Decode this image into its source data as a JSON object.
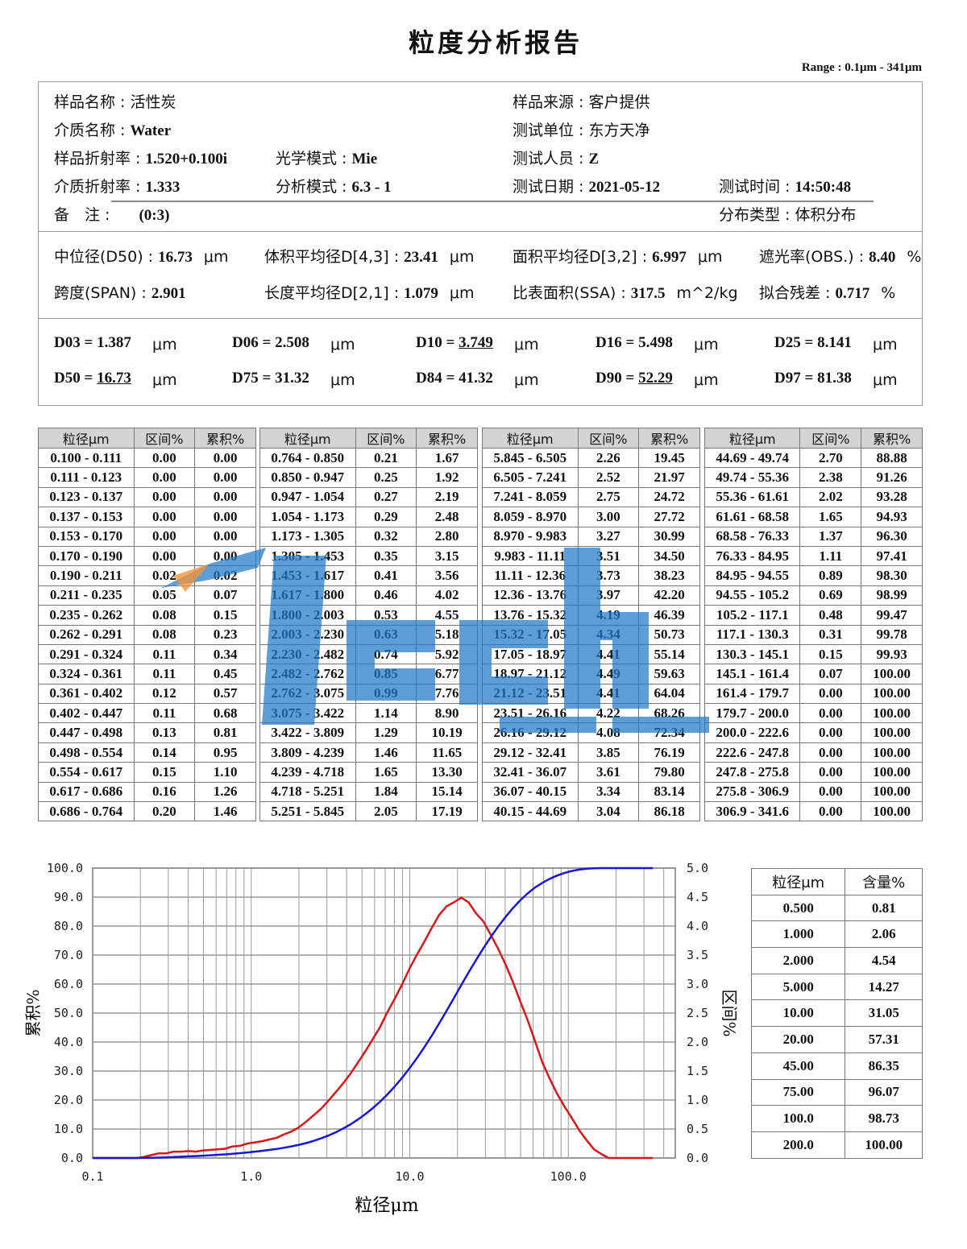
{
  "title": "粒度分析报告",
  "range": "Range : 0.1μm - 341μm",
  "info": {
    "sample_name": "样品名称 : 活性炭",
    "sample_source": "样品来源 : 客户提供",
    "medium_label": "介质名称 : ",
    "medium": "Water",
    "test_unit": "测试单位 : 东方天净",
    "sample_ri_label": "样品折射率 : ",
    "sample_ri": "1.520+0.100i",
    "optical_label": "光学模式 : ",
    "optical": "Mie",
    "tester_label": "测试人员 : ",
    "tester": "Z",
    "medium_ri_label": "介质折射率 : ",
    "medium_ri": "1.333",
    "analysis_label": "分析模式 : ",
    "analysis": "6.3 - 1",
    "date_label": "测试日期 : ",
    "date": "2021-05-12",
    "time_label": "测试时间 : ",
    "time": "14:50:48",
    "remark_label": "备　注 :",
    "remark": "(0:3)",
    "dist_type": "分布类型 : 体积分布"
  },
  "params": [
    {
      "label": "中位径(D50) : ",
      "value": "16.73",
      "unit": "μm"
    },
    {
      "label": "体积平均径D[4,3] : ",
      "value": "23.41",
      "unit": "μm"
    },
    {
      "label": "面积平均径D[3,2] : ",
      "value": "6.997",
      "unit": "μm"
    },
    {
      "label": "遮光率(OBS.) : ",
      "value": "8.40",
      "unit": "%"
    },
    {
      "label": "跨度(SPAN) : ",
      "value": "2.901",
      "unit": ""
    },
    {
      "label": "长度平均径D[2,1] : ",
      "value": "1.079",
      "unit": "μm"
    },
    {
      "label": "比表面积(SSA) : ",
      "value": "317.5",
      "unit": "m^2/kg"
    },
    {
      "label": "拟合残差 : ",
      "value": "0.717",
      "unit": "%"
    }
  ],
  "dvalues": [
    {
      "label": "D03 = ",
      "value": "1.387",
      "unit": "μm",
      "underline": false
    },
    {
      "label": "D06 = ",
      "value": "2.508",
      "unit": "μm",
      "underline": false
    },
    {
      "label": "D10 = ",
      "value": "3.749",
      "unit": "μm",
      "underline": true
    },
    {
      "label": "D16 = ",
      "value": "5.498",
      "unit": "μm",
      "underline": false
    },
    {
      "label": "D25 = ",
      "value": "8.141",
      "unit": "μm",
      "underline": false
    },
    {
      "label": "D50 = ",
      "value": "16.73",
      "unit": "μm",
      "underline": true
    },
    {
      "label": "D75 = ",
      "value": "31.32",
      "unit": "μm",
      "underline": false
    },
    {
      "label": "D84 = ",
      "value": "41.32",
      "unit": "μm",
      "underline": false
    },
    {
      "label": "D90 = ",
      "value": "52.29",
      "unit": "μm",
      "underline": true
    },
    {
      "label": "D97 = ",
      "value": "81.38",
      "unit": "μm",
      "underline": false
    }
  ],
  "size_table": {
    "headers": [
      "粒径μm",
      "区间%",
      "累积%"
    ],
    "blocks": [
      [
        [
          "0.100 - 0.111",
          "0.00",
          "0.00"
        ],
        [
          "0.111 - 0.123",
          "0.00",
          "0.00"
        ],
        [
          "0.123 - 0.137",
          "0.00",
          "0.00"
        ],
        [
          "0.137 - 0.153",
          "0.00",
          "0.00"
        ],
        [
          "0.153 - 0.170",
          "0.00",
          "0.00"
        ],
        [
          "0.170 - 0.190",
          "0.00",
          "0.00"
        ],
        [
          "0.190 - 0.211",
          "0.02",
          "0.02"
        ],
        [
          "0.211 - 0.235",
          "0.05",
          "0.07"
        ],
        [
          "0.235 - 0.262",
          "0.08",
          "0.15"
        ],
        [
          "0.262 - 0.291",
          "0.08",
          "0.23"
        ],
        [
          "0.291 - 0.324",
          "0.11",
          "0.34"
        ],
        [
          "0.324 - 0.361",
          "0.11",
          "0.45"
        ],
        [
          "0.361 - 0.402",
          "0.12",
          "0.57"
        ],
        [
          "0.402 - 0.447",
          "0.11",
          "0.68"
        ],
        [
          "0.447 - 0.498",
          "0.13",
          "0.81"
        ],
        [
          "0.498 - 0.554",
          "0.14",
          "0.95"
        ],
        [
          "0.554 - 0.617",
          "0.15",
          "1.10"
        ],
        [
          "0.617 - 0.686",
          "0.16",
          "1.26"
        ],
        [
          "0.686 - 0.764",
          "0.20",
          "1.46"
        ]
      ],
      [
        [
          "0.764 - 0.850",
          "0.21",
          "1.67"
        ],
        [
          "0.850 - 0.947",
          "0.25",
          "1.92"
        ],
        [
          "0.947 - 1.054",
          "0.27",
          "2.19"
        ],
        [
          "1.054 - 1.173",
          "0.29",
          "2.48"
        ],
        [
          "1.173 - 1.305",
          "0.32",
          "2.80"
        ],
        [
          "1.305 - 1.453",
          "0.35",
          "3.15"
        ],
        [
          "1.453 - 1.617",
          "0.41",
          "3.56"
        ],
        [
          "1.617 - 1.800",
          "0.46",
          "4.02"
        ],
        [
          "1.800 - 2.003",
          "0.53",
          "4.55"
        ],
        [
          "2.003 - 2.230",
          "0.63",
          "5.18"
        ],
        [
          "2.230 - 2.482",
          "0.74",
          "5.92"
        ],
        [
          "2.482 - 2.762",
          "0.85",
          "6.77"
        ],
        [
          "2.762 - 3.075",
          "0.99",
          "7.76"
        ],
        [
          "3.075 - 3.422",
          "1.14",
          "8.90"
        ],
        [
          "3.422 - 3.809",
          "1.29",
          "10.19"
        ],
        [
          "3.809 - 4.239",
          "1.46",
          "11.65"
        ],
        [
          "4.239 - 4.718",
          "1.65",
          "13.30"
        ],
        [
          "4.718 - 5.251",
          "1.84",
          "15.14"
        ],
        [
          "5.251 - 5.845",
          "2.05",
          "17.19"
        ]
      ],
      [
        [
          "5.845 - 6.505",
          "2.26",
          "19.45"
        ],
        [
          "6.505 - 7.241",
          "2.52",
          "21.97"
        ],
        [
          "7.241 - 8.059",
          "2.75",
          "24.72"
        ],
        [
          "8.059 - 8.970",
          "3.00",
          "27.72"
        ],
        [
          "8.970 - 9.983",
          "3.27",
          "30.99"
        ],
        [
          "9.983 - 11.11",
          "3.51",
          "34.50"
        ],
        [
          "11.11 - 12.36",
          "3.73",
          "38.23"
        ],
        [
          "12.36 - 13.76",
          "3.97",
          "42.20"
        ],
        [
          "13.76 - 15.32",
          "4.19",
          "46.39"
        ],
        [
          "15.32 - 17.05",
          "4.34",
          "50.73"
        ],
        [
          "17.05 - 18.97",
          "4.41",
          "55.14"
        ],
        [
          "18.97 - 21.12",
          "4.49",
          "59.63"
        ],
        [
          "21.12 - 23.51",
          "4.41",
          "64.04"
        ],
        [
          "23.51 - 26.16",
          "4.22",
          "68.26"
        ],
        [
          "26.16 - 29.12",
          "4.08",
          "72.34"
        ],
        [
          "29.12 - 32.41",
          "3.85",
          "76.19"
        ],
        [
          "32.41 - 36.07",
          "3.61",
          "79.80"
        ],
        [
          "36.07 - 40.15",
          "3.34",
          "83.14"
        ],
        [
          "40.15 - 44.69",
          "3.04",
          "86.18"
        ]
      ],
      [
        [
          "44.69 - 49.74",
          "2.70",
          "88.88"
        ],
        [
          "49.74 - 55.36",
          "2.38",
          "91.26"
        ],
        [
          "55.36 - 61.61",
          "2.02",
          "93.28"
        ],
        [
          "61.61 - 68.58",
          "1.65",
          "94.93"
        ],
        [
          "68.58 - 76.33",
          "1.37",
          "96.30"
        ],
        [
          "76.33 - 84.95",
          "1.11",
          "97.41"
        ],
        [
          "84.95 - 94.55",
          "0.89",
          "98.30"
        ],
        [
          "94.55 - 105.2",
          "0.69",
          "98.99"
        ],
        [
          "105.2 - 117.1",
          "0.48",
          "99.47"
        ],
        [
          "117.1 - 130.3",
          "0.31",
          "99.78"
        ],
        [
          "130.3 - 145.1",
          "0.15",
          "99.93"
        ],
        [
          "145.1 - 161.4",
          "0.07",
          "100.00"
        ],
        [
          "161.4 - 179.7",
          "0.00",
          "100.00"
        ],
        [
          "179.7 - 200.0",
          "0.00",
          "100.00"
        ],
        [
          "200.0 - 222.6",
          "0.00",
          "100.00"
        ],
        [
          "222.6 - 247.8",
          "0.00",
          "100.00"
        ],
        [
          "247.8 - 275.8",
          "0.00",
          "100.00"
        ],
        [
          "275.8 - 306.9",
          "0.00",
          "100.00"
        ],
        [
          "306.9 - 341.6",
          "0.00",
          "100.00"
        ]
      ]
    ]
  },
  "watermark": {
    "logo": "Tech",
    "text": "东方天净",
    "color": "#1e78c8"
  },
  "chart_data": {
    "type": "line",
    "xlabel": "粒径μm",
    "ylabel_left": "累积%",
    "ylabel_right": "区间%",
    "xscale": "log",
    "xlim": [
      0.1,
      473
    ],
    "ylim_left": [
      0,
      100
    ],
    "ylim_right": [
      0,
      5
    ],
    "grid": true,
    "xticks": [
      "0.1",
      "1.0",
      "10.0",
      "100.0"
    ],
    "yticks_left": [
      "0.0",
      "10.0",
      "20.0",
      "30.0",
      "40.0",
      "50.0",
      "60.0",
      "70.0",
      "80.0",
      "90.0",
      "100.0"
    ],
    "yticks_right": [
      "0.0",
      "0.5",
      "1.0",
      "1.5",
      "2.0",
      "2.5",
      "3.0",
      "3.5",
      "4.0",
      "4.5",
      "5.0"
    ],
    "x": [
      0.1,
      0.111,
      0.123,
      0.137,
      0.153,
      0.17,
      0.19,
      0.211,
      0.235,
      0.262,
      0.291,
      0.324,
      0.361,
      0.402,
      0.447,
      0.498,
      0.554,
      0.617,
      0.686,
      0.764,
      0.85,
      0.947,
      1.054,
      1.173,
      1.305,
      1.453,
      1.617,
      1.8,
      2.003,
      2.23,
      2.482,
      2.762,
      3.075,
      3.422,
      3.809,
      4.239,
      4.718,
      5.251,
      5.845,
      6.505,
      7.241,
      8.059,
      8.97,
      9.983,
      11.11,
      12.36,
      13.76,
      15.32,
      17.05,
      18.97,
      21.12,
      23.51,
      26.16,
      29.12,
      32.41,
      36.07,
      40.15,
      44.69,
      49.74,
      55.36,
      61.61,
      68.58,
      76.33,
      84.95,
      94.55,
      105.2,
      117.1,
      130.3,
      145.1,
      161.4,
      179.7,
      200.0,
      222.6,
      247.8,
      275.8,
      306.9,
      341.6
    ],
    "series": [
      {
        "name": "区间%",
        "axis": "right",
        "color": "#d81818",
        "values": [
          0,
          0,
          0,
          0,
          0,
          0,
          0,
          0.02,
          0.05,
          0.08,
          0.08,
          0.11,
          0.11,
          0.12,
          0.11,
          0.13,
          0.14,
          0.15,
          0.16,
          0.2,
          0.21,
          0.25,
          0.27,
          0.29,
          0.32,
          0.35,
          0.41,
          0.46,
          0.53,
          0.63,
          0.74,
          0.85,
          0.99,
          1.14,
          1.29,
          1.46,
          1.65,
          1.84,
          2.05,
          2.26,
          2.52,
          2.75,
          3.0,
          3.27,
          3.51,
          3.73,
          3.97,
          4.19,
          4.34,
          4.41,
          4.49,
          4.41,
          4.22,
          4.08,
          3.85,
          3.61,
          3.34,
          3.04,
          2.7,
          2.38,
          2.02,
          1.65,
          1.37,
          1.11,
          0.89,
          0.69,
          0.48,
          0.31,
          0.15,
          0.07,
          0,
          0,
          0,
          0,
          0,
          0,
          0
        ]
      },
      {
        "name": "累积%",
        "axis": "left",
        "color": "#1818d0",
        "values": [
          0,
          0,
          0,
          0,
          0,
          0,
          0,
          0.02,
          0.07,
          0.15,
          0.23,
          0.34,
          0.45,
          0.57,
          0.68,
          0.81,
          0.95,
          1.1,
          1.26,
          1.46,
          1.67,
          1.92,
          2.19,
          2.48,
          2.8,
          3.15,
          3.56,
          4.02,
          4.55,
          5.18,
          5.92,
          6.77,
          7.76,
          8.9,
          10.19,
          11.65,
          13.3,
          15.14,
          17.19,
          19.45,
          21.97,
          24.72,
          27.72,
          30.99,
          34.5,
          38.23,
          42.2,
          46.39,
          50.73,
          55.14,
          59.63,
          64.04,
          68.26,
          72.34,
          76.19,
          79.8,
          83.14,
          86.18,
          88.88,
          91.26,
          93.28,
          94.93,
          96.3,
          97.41,
          98.3,
          98.99,
          99.47,
          99.78,
          99.93,
          100,
          100,
          100,
          100,
          100,
          100,
          100,
          100
        ]
      }
    ]
  },
  "summary_table": {
    "headers": [
      "粒径μm",
      "含量%"
    ],
    "rows": [
      [
        "0.500",
        "0.81"
      ],
      [
        "1.000",
        "2.06"
      ],
      [
        "2.000",
        "4.54"
      ],
      [
        "5.000",
        "14.27"
      ],
      [
        "10.00",
        "31.05"
      ],
      [
        "20.00",
        "57.31"
      ],
      [
        "45.00",
        "86.35"
      ],
      [
        "75.00",
        "96.07"
      ],
      [
        "100.0",
        "98.73"
      ],
      [
        "200.0",
        "100.00"
      ]
    ]
  }
}
